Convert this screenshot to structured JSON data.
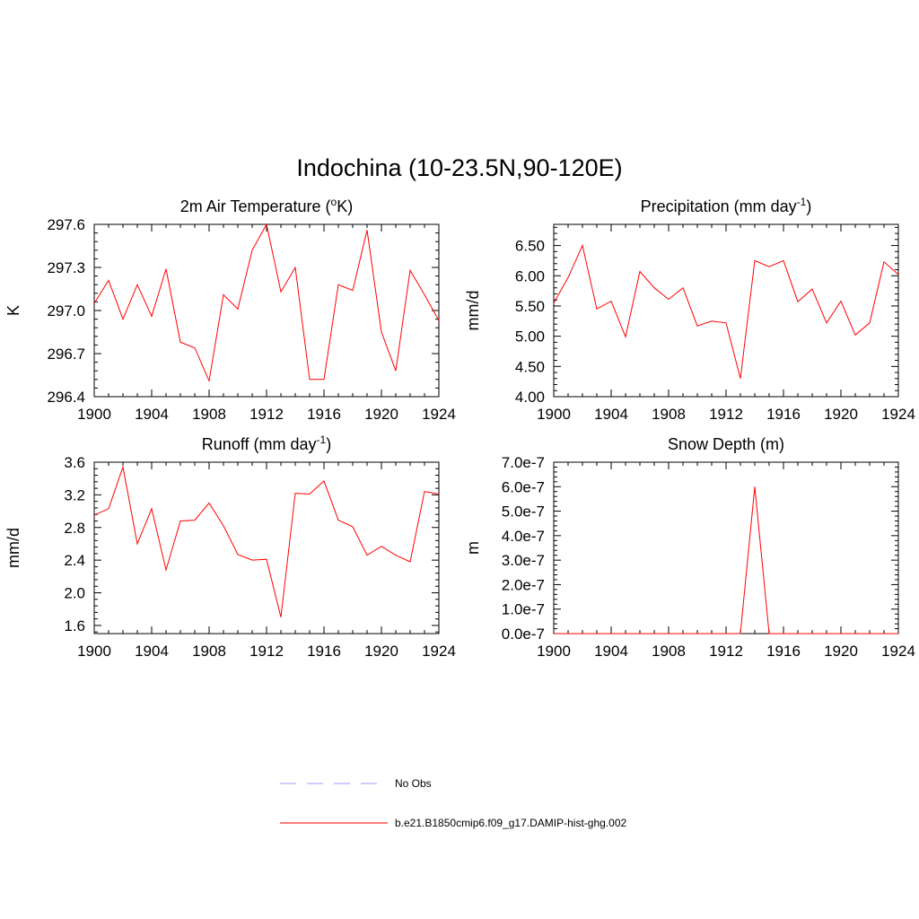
{
  "title": "Indochina (10-23.5N,90-120E)",
  "colors": {
    "series": "#ff0000",
    "obs": "#9a9aff",
    "axis": "#000000"
  },
  "legend": [
    {
      "label": "No Obs",
      "style": "dashed",
      "color": "#9a9aff"
    },
    {
      "label": "b.e21.B1850cmip6.f09_g17.DAMIP-hist-ghg.002",
      "style": "solid",
      "color": "#ff0000"
    }
  ],
  "chart_data": [
    {
      "type": "line",
      "title": "2m Air Temperature (",
      "title_sup": "o",
      "title_after": "K)",
      "ylabel": "K",
      "xlim": [
        1900,
        1924
      ],
      "ylim": [
        296.4,
        297.6
      ],
      "xticks": [
        1900,
        1904,
        1908,
        1912,
        1916,
        1920,
        1924
      ],
      "yticks": [
        296.4,
        296.7,
        297.0,
        297.3,
        297.6
      ],
      "ytick_labels": [
        "296.4",
        "296.7",
        "297.0",
        "297.3",
        "297.6"
      ],
      "x": [
        1900,
        1901,
        1902,
        1903,
        1904,
        1905,
        1906,
        1907,
        1908,
        1909,
        1910,
        1911,
        1912,
        1913,
        1914,
        1915,
        1916,
        1917,
        1918,
        1919,
        1920,
        1921,
        1922,
        1923,
        1924
      ],
      "series": [
        {
          "name": "b.e21.B1850cmip6.f09_g17.DAMIP-hist-ghg.002",
          "values": [
            297.05,
            297.21,
            296.94,
            297.18,
            296.96,
            297.29,
            296.78,
            296.74,
            296.51,
            297.11,
            297.01,
            297.42,
            297.6,
            297.13,
            297.3,
            296.52,
            296.52,
            297.18,
            297.14,
            297.56,
            296.85,
            296.58,
            297.28,
            297.11,
            296.93
          ]
        }
      ]
    },
    {
      "type": "line",
      "title": "Precipitation (mm day",
      "title_sup": "-1",
      "title_after": ")",
      "ylabel": "mm/d",
      "xlim": [
        1900,
        1924
      ],
      "ylim": [
        4.0,
        6.85
      ],
      "xticks": [
        1900,
        1904,
        1908,
        1912,
        1916,
        1920,
        1924
      ],
      "yticks": [
        4.0,
        4.5,
        5.0,
        5.5,
        6.0,
        6.5
      ],
      "ytick_labels": [
        "4.00",
        "4.50",
        "5.00",
        "5.50",
        "6.00",
        "6.50"
      ],
      "x": [
        1900,
        1901,
        1902,
        1903,
        1904,
        1905,
        1906,
        1907,
        1908,
        1909,
        1910,
        1911,
        1912,
        1913,
        1914,
        1915,
        1916,
        1917,
        1918,
        1919,
        1920,
        1921,
        1922,
        1923,
        1924
      ],
      "series": [
        {
          "name": "b.e21.B1850cmip6.f09_g17.DAMIP-hist-ghg.002",
          "values": [
            5.55,
            5.97,
            6.5,
            5.45,
            5.58,
            4.99,
            6.07,
            5.8,
            5.61,
            5.8,
            5.17,
            5.25,
            5.22,
            4.3,
            6.25,
            6.15,
            6.25,
            5.57,
            5.78,
            5.22,
            5.58,
            5.02,
            5.22,
            6.23,
            6.02
          ]
        }
      ]
    },
    {
      "type": "line",
      "title": "Runoff (mm day",
      "title_sup": "-1",
      "title_after": ")",
      "ylabel": "mm/d",
      "xlim": [
        1900,
        1924
      ],
      "ylim": [
        1.5,
        3.6
      ],
      "xticks": [
        1900,
        1904,
        1908,
        1912,
        1916,
        1920,
        1924
      ],
      "yticks": [
        1.6,
        2.0,
        2.4,
        2.8,
        3.2,
        3.6
      ],
      "ytick_labels": [
        "1.6",
        "2.0",
        "2.4",
        "2.8",
        "3.2",
        "3.6"
      ],
      "x": [
        1900,
        1901,
        1902,
        1903,
        1904,
        1905,
        1906,
        1907,
        1908,
        1909,
        1910,
        1911,
        1912,
        1913,
        1914,
        1915,
        1916,
        1917,
        1918,
        1919,
        1920,
        1921,
        1922,
        1923,
        1924
      ],
      "series": [
        {
          "name": "b.e21.B1850cmip6.f09_g17.DAMIP-hist-ghg.002",
          "values": [
            2.95,
            3.03,
            3.54,
            2.6,
            3.03,
            2.28,
            2.88,
            2.89,
            3.1,
            2.82,
            2.47,
            2.4,
            2.41,
            1.7,
            3.22,
            3.21,
            3.37,
            2.89,
            2.81,
            2.46,
            2.57,
            2.46,
            2.38,
            3.24,
            3.21
          ]
        }
      ]
    },
    {
      "type": "line",
      "title": "Snow Depth (m)",
      "title_sup": "",
      "title_after": "",
      "ylabel": "m",
      "xlim": [
        1900,
        1924
      ],
      "ylim": [
        0,
        7e-07
      ],
      "xticks": [
        1900,
        1904,
        1908,
        1912,
        1916,
        1920,
        1924
      ],
      "yticks": [
        0,
        1e-07,
        2e-07,
        3e-07,
        4e-07,
        5e-07,
        6e-07,
        7e-07
      ],
      "ytick_labels": [
        "0.0e-7",
        "1.0e-7",
        "2.0e-7",
        "3.0e-7",
        "4.0e-7",
        "5.0e-7",
        "6.0e-7",
        "7.0e-7"
      ],
      "x": [
        1900,
        1901,
        1902,
        1903,
        1904,
        1905,
        1906,
        1907,
        1908,
        1909,
        1910,
        1911,
        1912,
        1913,
        1914,
        1915,
        1916,
        1917,
        1918,
        1919,
        1920,
        1921,
        1922,
        1923,
        1924
      ],
      "series": [
        {
          "name": "b.e21.B1850cmip6.f09_g17.DAMIP-hist-ghg.002",
          "values": [
            0,
            0,
            0,
            0,
            0,
            0,
            0,
            0,
            0,
            0,
            0,
            0,
            0,
            0,
            6e-07,
            0,
            0,
            0,
            0,
            0,
            0,
            0,
            0,
            0,
            0
          ]
        }
      ]
    }
  ]
}
